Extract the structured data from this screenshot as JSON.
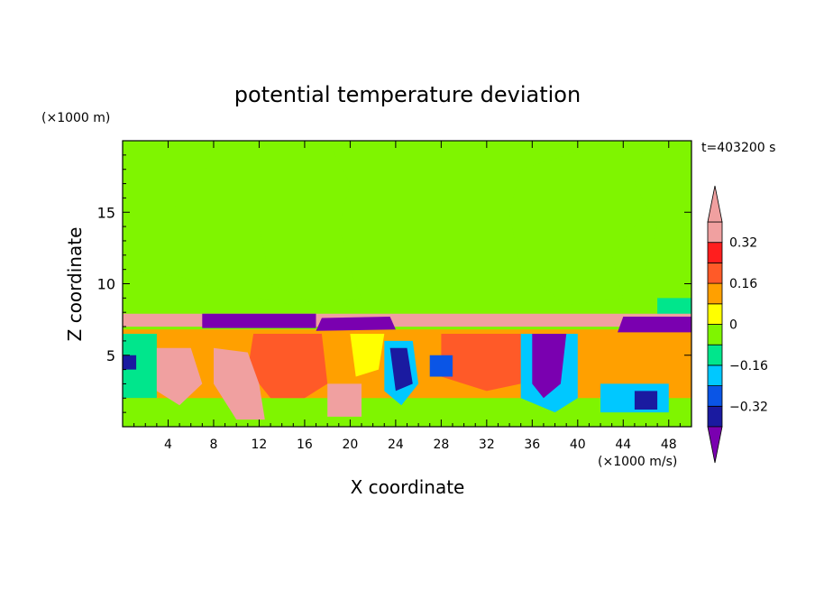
{
  "chart_data": {
    "type": "heatmap",
    "title": "potential temperature deviation",
    "xlabel": "X coordinate",
    "ylabel": "Z coordinate",
    "x_unit_label": "(×1000 m/s)",
    "y_unit_label": "(×1000 m)",
    "time_label": "t=403200 s",
    "xlim": [
      0,
      50
    ],
    "ylim": [
      0,
      20
    ],
    "x_ticks": [
      "4",
      "8",
      "12",
      "16",
      "20",
      "24",
      "28",
      "32",
      "36",
      "40",
      "44",
      "48"
    ],
    "y_ticks": [
      "5",
      "10",
      "15"
    ],
    "x_tick_values": [
      4,
      8,
      12,
      16,
      20,
      24,
      28,
      32,
      36,
      40,
      44,
      48
    ],
    "y_tick_values": [
      5,
      10,
      15
    ],
    "colorbar": {
      "levels": [
        -0.4,
        -0.32,
        -0.24,
        -0.16,
        -0.08,
        0,
        0.08,
        0.16,
        0.24,
        0.32,
        0.4
      ],
      "tick_labels": [
        "0.32",
        "0.16",
        "0",
        "−0.16",
        "−0.32"
      ],
      "tick_values": [
        0.32,
        0.16,
        0,
        -0.16,
        -0.32
      ],
      "colors": [
        "#7a00b0",
        "#1a1aa0",
        "#0a55e6",
        "#00c8ff",
        "#00e68c",
        "#7ff500",
        "#ffff00",
        "#ffa000",
        "#ff5a28",
        "#ff1e1e",
        "#f0a0a0"
      ],
      "under_color": "#7a00b0",
      "over_color": "#f0a0a0"
    },
    "background_color": "#7ff500",
    "regions": [
      {
        "v": 0.1,
        "pts": [
          [
            0,
            6.8
          ],
          [
            50,
            6.8
          ],
          [
            50,
            0
          ],
          [
            0,
            0
          ]
        ]
      },
      {
        "v": -0.05,
        "pts": [
          [
            0,
            20
          ],
          [
            8,
            20
          ],
          [
            7,
            17
          ],
          [
            4,
            15
          ],
          [
            2,
            12
          ],
          [
            0,
            10
          ]
        ]
      },
      {
        "v": -0.05,
        "pts": [
          [
            0,
            11
          ],
          [
            5,
            10.5
          ],
          [
            9,
            9.5
          ],
          [
            12,
            9
          ],
          [
            15,
            8.5
          ],
          [
            18,
            9
          ],
          [
            21,
            8
          ],
          [
            0,
            8
          ]
        ]
      },
      {
        "v": -0.05,
        "pts": [
          [
            12,
            20
          ],
          [
            18,
            20
          ],
          [
            20,
            17
          ],
          [
            19,
            14
          ],
          [
            20,
            11
          ],
          [
            21,
            9
          ],
          [
            17,
            8.5
          ],
          [
            13,
            10
          ],
          [
            12,
            14
          ]
        ]
      },
      {
        "v": -0.05,
        "pts": [
          [
            35,
            18
          ],
          [
            39,
            19
          ],
          [
            43,
            20
          ],
          [
            46,
            20
          ],
          [
            46,
            15
          ],
          [
            43,
            12
          ],
          [
            44,
            9
          ],
          [
            39,
            8.5
          ],
          [
            35,
            11
          ],
          [
            34,
            15
          ]
        ]
      },
      {
        "v": -0.05,
        "pts": [
          [
            46,
            20
          ],
          [
            50,
            20
          ],
          [
            50,
            8
          ],
          [
            47,
            8
          ],
          [
            46,
            11
          ],
          [
            47,
            14
          ],
          [
            45,
            17
          ]
        ]
      },
      {
        "v": -0.12,
        "pts": [
          [
            47,
            9
          ],
          [
            50,
            9
          ],
          [
            50,
            7.8
          ],
          [
            47,
            7.8
          ]
        ]
      },
      {
        "v": 0.42,
        "pts": [
          [
            0,
            7.9
          ],
          [
            50,
            7.9
          ],
          [
            50,
            7.0
          ],
          [
            0,
            7.0
          ]
        ]
      },
      {
        "v": -0.45,
        "pts": [
          [
            7,
            7.9
          ],
          [
            17,
            7.9
          ],
          [
            17,
            6.9
          ],
          [
            7,
            6.9
          ]
        ]
      },
      {
        "v": -0.45,
        "pts": [
          [
            17.5,
            7.6
          ],
          [
            23.5,
            7.7
          ],
          [
            24,
            6.8
          ],
          [
            17,
            6.7
          ]
        ]
      },
      {
        "v": -0.45,
        "pts": [
          [
            44,
            7.7
          ],
          [
            50,
            7.7
          ],
          [
            50,
            6.6
          ],
          [
            43.5,
            6.6
          ]
        ]
      },
      {
        "v": -0.12,
        "pts": [
          [
            0,
            6.5
          ],
          [
            3,
            6.5
          ],
          [
            3,
            2
          ],
          [
            0,
            2
          ]
        ]
      },
      {
        "v": -0.05,
        "pts": [
          [
            0,
            2
          ],
          [
            50,
            2
          ],
          [
            50,
            0
          ],
          [
            0,
            0
          ]
        ]
      },
      {
        "v": 0.22,
        "pts": [
          [
            11.5,
            6.5
          ],
          [
            17.5,
            6.5
          ],
          [
            18,
            3
          ],
          [
            16,
            2
          ],
          [
            13,
            2
          ],
          [
            11,
            4
          ]
        ]
      },
      {
        "v": 0.22,
        "pts": [
          [
            28,
            6.5
          ],
          [
            35,
            6.5
          ],
          [
            35,
            3
          ],
          [
            32,
            2.5
          ],
          [
            28,
            3.5
          ]
        ]
      },
      {
        "v": 0.36,
        "pts": [
          [
            3,
            5.5
          ],
          [
            6,
            5.5
          ],
          [
            7,
            3
          ],
          [
            5,
            1.5
          ],
          [
            3,
            2.5
          ]
        ]
      },
      {
        "v": 0.36,
        "pts": [
          [
            8,
            5.5
          ],
          [
            11,
            5.2
          ],
          [
            12,
            3
          ],
          [
            12.5,
            0.5
          ],
          [
            10,
            0.5
          ],
          [
            8,
            3
          ]
        ]
      },
      {
        "v": 0.36,
        "pts": [
          [
            18,
            3
          ],
          [
            21,
            3
          ],
          [
            21,
            0.7
          ],
          [
            18,
            0.7
          ]
        ]
      },
      {
        "v": 0.42,
        "pts": [
          [
            9,
            4.5
          ],
          [
            10,
            4.5
          ],
          [
            10,
            3.5
          ],
          [
            9,
            3.5
          ]
        ]
      },
      {
        "v": 0.42,
        "pts": [
          [
            10.5,
            2
          ],
          [
            11.5,
            2
          ],
          [
            11.5,
            1
          ],
          [
            10.5,
            1
          ]
        ]
      },
      {
        "v": 0.0,
        "pts": [
          [
            20,
            6.5
          ],
          [
            23,
            6.5
          ],
          [
            22.5,
            4
          ],
          [
            20.5,
            3.5
          ]
        ]
      },
      {
        "v": -0.24,
        "pts": [
          [
            23,
            6
          ],
          [
            25.5,
            6
          ],
          [
            26,
            3
          ],
          [
            24.5,
            1.5
          ],
          [
            23,
            2.5
          ]
        ]
      },
      {
        "v": -0.35,
        "pts": [
          [
            23.5,
            5.5
          ],
          [
            25,
            5.5
          ],
          [
            25.5,
            3
          ],
          [
            24,
            2.5
          ]
        ]
      },
      {
        "v": -0.3,
        "pts": [
          [
            27,
            5
          ],
          [
            29,
            5
          ],
          [
            29,
            3.5
          ],
          [
            27,
            3.5
          ]
        ]
      },
      {
        "v": -0.24,
        "pts": [
          [
            35,
            6.5
          ],
          [
            40,
            6.5
          ],
          [
            40,
            2
          ],
          [
            38,
            1
          ],
          [
            35,
            2
          ]
        ]
      },
      {
        "v": -0.45,
        "pts": [
          [
            36,
            6.5
          ],
          [
            39,
            6.5
          ],
          [
            38.5,
            3
          ],
          [
            37,
            2
          ],
          [
            36,
            3
          ]
        ]
      },
      {
        "v": -0.2,
        "pts": [
          [
            42,
            3
          ],
          [
            48,
            3
          ],
          [
            48,
            1
          ],
          [
            42,
            1
          ]
        ]
      },
      {
        "v": -0.35,
        "pts": [
          [
            45,
            2.5
          ],
          [
            47,
            2.5
          ],
          [
            47,
            1.2
          ],
          [
            45,
            1.2
          ]
        ]
      },
      {
        "v": -0.35,
        "pts": [
          [
            0,
            5
          ],
          [
            1.2,
            5
          ],
          [
            1.2,
            4
          ],
          [
            0,
            4
          ]
        ]
      }
    ]
  }
}
